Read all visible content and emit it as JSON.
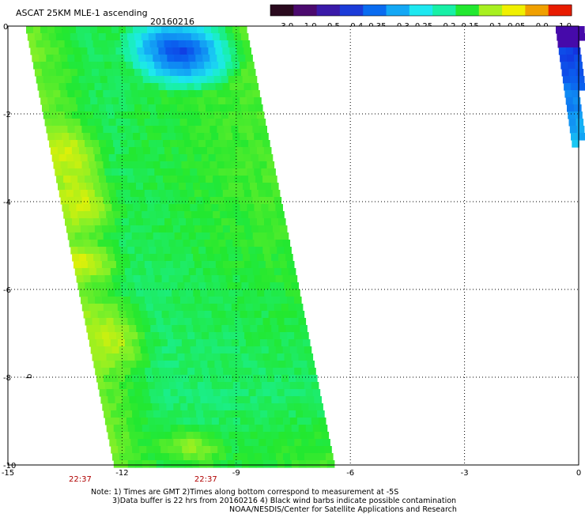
{
  "header": {
    "title": "ASCAT 25KM MLE-1 ascending",
    "date": "20160216"
  },
  "colorbar": {
    "labels": [
      "-3.0",
      "-1.0",
      "-0.5",
      "-0.4",
      "-0.35",
      "-0.3",
      "-0.25",
      "-0.2",
      "-0.15",
      "-0.1",
      "-0.05",
      "0.0",
      "1.0"
    ],
    "colors": [
      "#2a0a1e",
      "#4b0a6e",
      "#3a1aa8",
      "#1c3cd8",
      "#0a6cf0",
      "#14a8f5",
      "#1ee8f0",
      "#18f0a6",
      "#22e830",
      "#a8f020",
      "#f0f000",
      "#f0a000",
      "#e81c00"
    ]
  },
  "map": {
    "lon_ticks": [
      -15,
      -12,
      -9,
      -6,
      -3,
      0
    ],
    "lon_labels": [
      "-15",
      "-12",
      "-9",
      "-6",
      "-3",
      "0"
    ],
    "lat_ticks": [
      0,
      -2,
      -4,
      -6,
      -8,
      -10
    ],
    "lat_labels": [
      "0",
      "-2",
      "-4",
      "-6",
      "-8",
      "-10"
    ],
    "lon_range": [
      -15,
      0
    ],
    "lat_range": [
      -10,
      0
    ],
    "grid": "dotted",
    "side_marker": "b"
  },
  "times": [
    {
      "label": "22:37",
      "lon": -13.1
    },
    {
      "label": "22:37",
      "lon": -9.8
    }
  ],
  "notes": {
    "line1": "Note: 1) Times are GMT 2)Times along bottom correspond to measurement at -5S",
    "line2": "3)Data buffer is 22 hrs from 20160216 4) Black wind barbs indicate possible contamination",
    "line3": "NOAA/NESDIS/Center for Satellite Applications and Research"
  }
}
